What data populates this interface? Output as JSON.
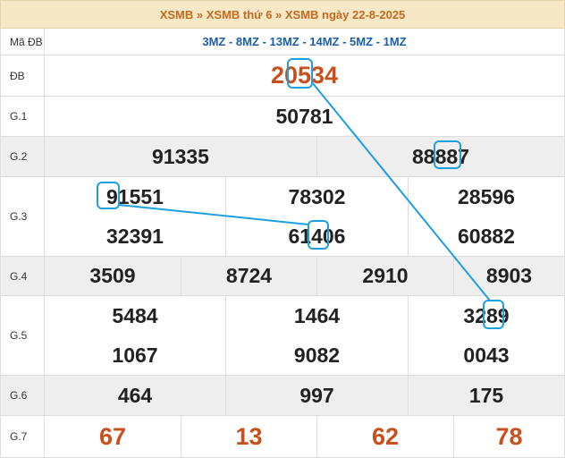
{
  "header": {
    "title": "XSMB » XSMB thứ 6 » XSMB ngày 22-8-2025"
  },
  "code_row": {
    "label": "Mã ĐB",
    "codes": "3MZ - 8MZ - 13MZ - 14MZ - 5MZ - 1MZ"
  },
  "prizes": [
    {
      "label": "ĐB",
      "numbers": [
        "20534"
      ]
    },
    {
      "label": "G.1",
      "numbers": [
        "50781"
      ]
    },
    {
      "label": "G.2",
      "numbers": [
        "91335",
        "88887"
      ]
    },
    {
      "label": "G.3",
      "numbers": [
        "91551",
        "78302",
        "28596",
        "32391",
        "61406",
        "60882"
      ]
    },
    {
      "label": "G.4",
      "numbers": [
        "3509",
        "8724",
        "2910",
        "8903"
      ]
    },
    {
      "label": "G.5",
      "numbers": [
        "5484",
        "1464",
        "3289",
        "1067",
        "9082",
        "0043"
      ]
    },
    {
      "label": "G.6",
      "numbers": [
        "464",
        "997",
        "175"
      ]
    },
    {
      "label": "G.7",
      "numbers": [
        "67",
        "13",
        "62",
        "78"
      ]
    }
  ]
}
